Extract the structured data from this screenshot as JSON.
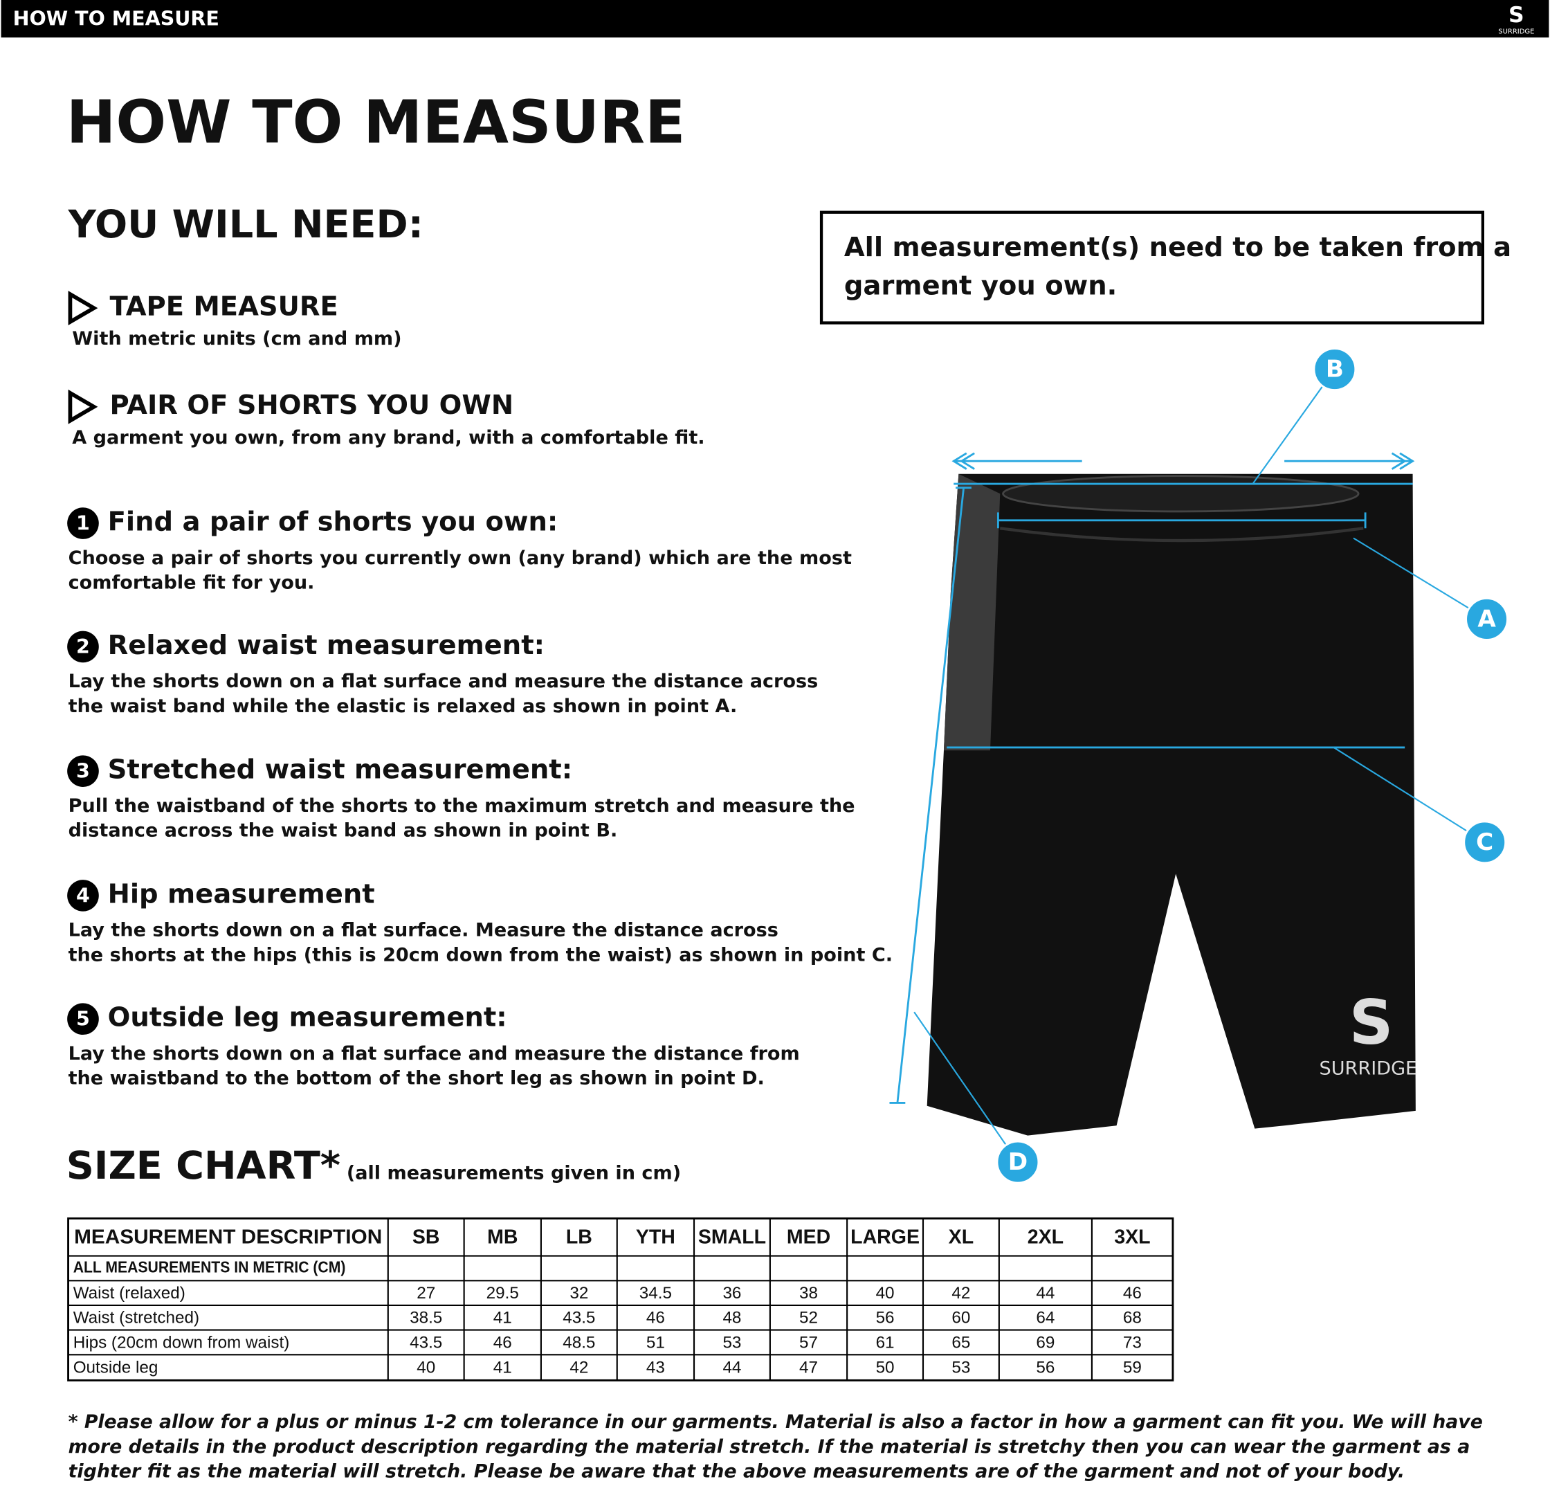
{
  "top_bar": {
    "title": "HOW TO MEASURE",
    "logo_mark": "S",
    "logo_text": "SURRIDGE"
  },
  "heading": "HOW TO MEASURE",
  "you_will_need": {
    "title": "YOU WILL NEED:",
    "items": [
      {
        "title": "TAPE MEASURE",
        "text": "With metric units (cm and mm)"
      },
      {
        "title": "PAIR OF SHORTS YOU OWN",
        "text": "A garment you own, from any brand, with a comfortable fit."
      }
    ]
  },
  "note": [
    "All measurement(s) need to be taken from a",
    "garment you own."
  ],
  "steps": [
    {
      "number": "1",
      "title": "Find a pair of shorts you own:",
      "lines": [
        "Choose a pair of shorts you currently own (any brand) which are the most",
        "comfortable fit for you."
      ]
    },
    {
      "number": "2",
      "title": "Relaxed waist measurement:",
      "lines": [
        "Lay the shorts down on a flat surface and measure the distance across",
        "the waist band while the elastic is relaxed as shown in point A."
      ]
    },
    {
      "number": "3",
      "title": "Stretched waist measurement:",
      "lines": [
        "Pull the waistband of the shorts to the maximum stretch and measure the",
        "distance across the waist band as shown in point B."
      ]
    },
    {
      "number": "4",
      "title": "Hip measurement",
      "lines": [
        "Lay the shorts down on a flat surface. Measure the distance across",
        "the shorts at the hips (this is 20cm down from the waist)  as shown in point C."
      ]
    },
    {
      "number": "5",
      "title": "Outside leg measurement:",
      "lines": [
        "Lay the shorts down on a flat surface and measure the distance from",
        "the waistband to the bottom of the short leg as shown in point D."
      ]
    }
  ],
  "diagram": {
    "labels": [
      "A",
      "B",
      "C",
      "D"
    ],
    "logo_mark": "S",
    "logo_text": "SURRIDGE"
  },
  "size_chart": {
    "title": "SIZE CHART*",
    "subtitle": "(all measurements given in cm)",
    "header": [
      "MEASUREMENT DESCRIPTION",
      "SB",
      "MB",
      "LB",
      "YTH",
      "SMALL",
      "MED",
      "LARGE",
      "XL",
      "2XL",
      "3XL"
    ],
    "subheader": "ALL MEASUREMENTS IN METRIC (CM)",
    "rows": [
      [
        "Waist (relaxed)",
        27,
        29.5,
        32,
        34.5,
        36,
        38,
        40,
        42,
        44,
        46
      ],
      [
        "Waist (stretched)",
        38.5,
        41,
        43.5,
        46,
        48,
        52,
        56,
        60,
        64,
        68
      ],
      [
        "Hips (20cm down from waist)",
        43.5,
        46,
        48.5,
        51,
        53,
        57,
        61,
        65,
        69,
        73
      ],
      [
        "Outside leg",
        40,
        41,
        42,
        43,
        44,
        47,
        50,
        53,
        56,
        59
      ]
    ]
  },
  "footnote": [
    "* Please allow for a plus or minus 1-2 cm tolerance in our garments. Material is also a factor in how a garment can fit you. We will have",
    "more details in the product description regarding the material stretch.  If the material is stretchy then you can wear the garment as a",
    "tighter fit as the material will stretch.  Please be aware that the above measurements are of the garment and not of your body."
  ]
}
